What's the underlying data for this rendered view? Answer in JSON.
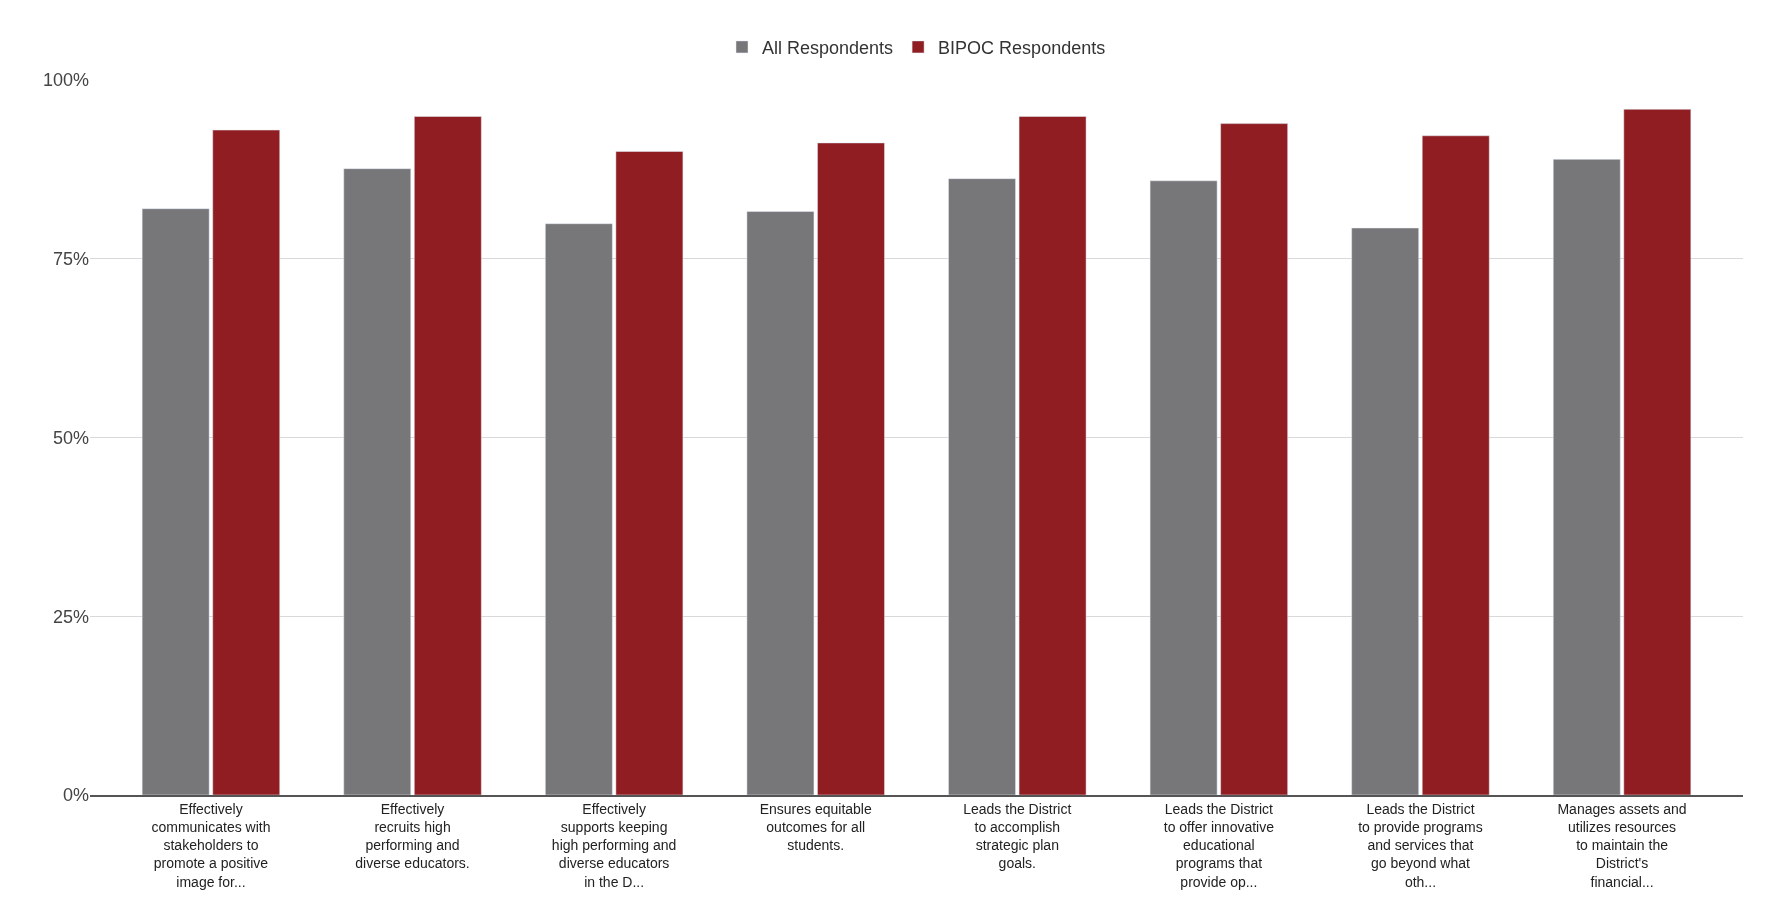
{
  "chart_data": {
    "type": "bar",
    "categories": [
      "Effectively communicates with stakeholders to promote a positive image for...",
      "Effectively recruits high performing and diverse educators.",
      "Effectively supports keeping high performing and diverse educators in the D...",
      "Ensures equitable outcomes for all students.",
      "Leads the District to accomplish strategic plan goals.",
      "Leads the District to offer innovative educational programs that provide op...",
      "Leads the District to provide programs and services that go beyond what oth...",
      "Manages assets and utilizes resources to maintain the District's financial..."
    ],
    "series": [
      {
        "name": "All Respondents",
        "color": "#77777a",
        "values": [
          82.0,
          87.6,
          79.9,
          81.6,
          86.2,
          85.9,
          79.3,
          88.9
        ]
      },
      {
        "name": "BIPOC Respondents",
        "color": "#8f1d21",
        "values": [
          93.0,
          94.9,
          90.0,
          91.2,
          94.9,
          93.9,
          92.2,
          95.9
        ]
      }
    ],
    "ylim": [
      0,
      100
    ],
    "yticks": [
      {
        "value": 0,
        "label": "0%"
      },
      {
        "value": 25,
        "label": "25%"
      },
      {
        "value": 50,
        "label": "50%"
      },
      {
        "value": 75,
        "label": "75%"
      },
      {
        "value": 100,
        "label": "100%"
      }
    ],
    "grid": "y",
    "legend": "top"
  }
}
